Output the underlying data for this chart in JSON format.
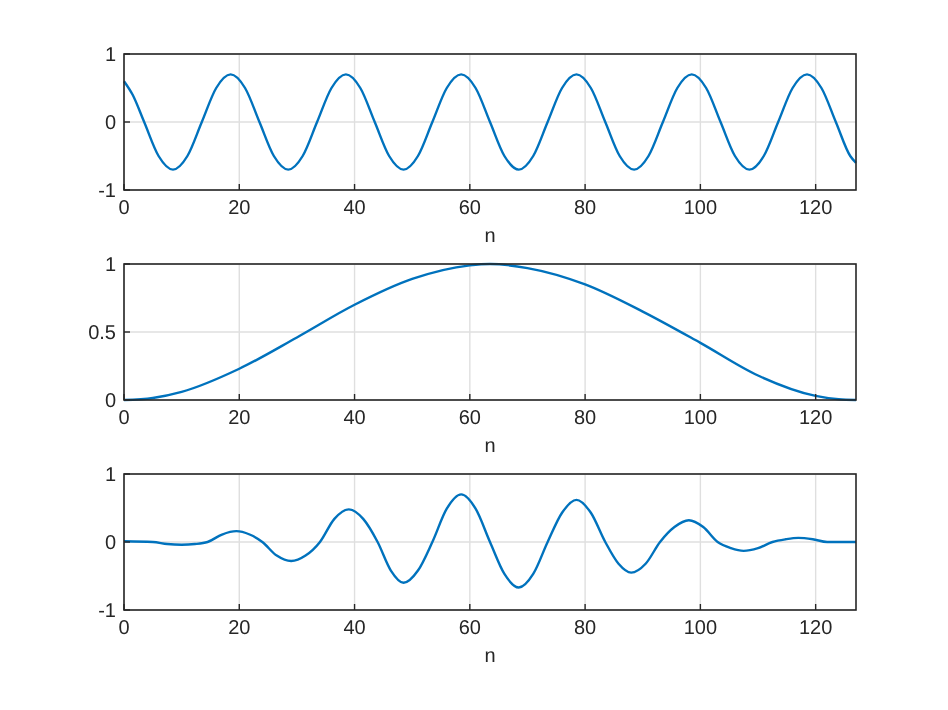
{
  "chart_data": [
    {
      "type": "line",
      "xlabel": "n",
      "xlim": [
        0,
        127
      ],
      "ylim": [
        -1,
        1
      ],
      "xticks": [
        0,
        20,
        40,
        60,
        80,
        100,
        120
      ],
      "yticks": [
        -1,
        0,
        1
      ],
      "grid": true,
      "series": [
        {
          "color": "#0072bd",
          "x": [
            0,
            1.5,
            3.5,
            6,
            8.5,
            11,
            13.5,
            16,
            18.5,
            21,
            23.5,
            26,
            28.5,
            31,
            33.5,
            36,
            38.5,
            41,
            43.5,
            46,
            48.5,
            51,
            53.5,
            56,
            58.5,
            61,
            63.5,
            66,
            68.5,
            71,
            73.5,
            76,
            78.5,
            81,
            83.5,
            86,
            88.5,
            91,
            93.5,
            96,
            98.5,
            101,
            103.5,
            106,
            108.5,
            111,
            113.5,
            116,
            118.5,
            121,
            123.5,
            126,
            127
          ],
          "values": [
            0.6,
            0.4,
            0,
            -0.5,
            -0.7,
            -0.5,
            0,
            0.5,
            0.7,
            0.5,
            0,
            -0.5,
            -0.7,
            -0.5,
            0,
            0.5,
            0.7,
            0.5,
            0,
            -0.5,
            -0.7,
            -0.5,
            0,
            0.5,
            0.7,
            0.5,
            0,
            -0.5,
            -0.7,
            -0.5,
            0,
            0.5,
            0.7,
            0.5,
            0,
            -0.5,
            -0.7,
            -0.5,
            0,
            0.5,
            0.7,
            0.5,
            0,
            -0.5,
            -0.7,
            -0.5,
            0,
            0.5,
            0.7,
            0.5,
            0,
            -0.5,
            -0.6
          ]
        }
      ]
    },
    {
      "type": "line",
      "xlabel": "n",
      "xlim": [
        0,
        127
      ],
      "ylim": [
        0,
        1
      ],
      "xticks": [
        0,
        20,
        40,
        60,
        80,
        100,
        120
      ],
      "yticks": [
        0,
        0.5,
        1
      ],
      "grid": true,
      "series": [
        {
          "color": "#0072bd",
          "x": [
            0,
            5,
            10,
            20,
            30,
            40,
            50,
            60,
            63.5,
            70,
            80,
            90,
            100,
            110,
            120,
            124,
            127
          ],
          "values": [
            0,
            0.015,
            0.06,
            0.23,
            0.46,
            0.7,
            0.89,
            0.99,
            1,
            0.97,
            0.85,
            0.65,
            0.42,
            0.18,
            0.03,
            0.005,
            0
          ]
        }
      ]
    },
    {
      "type": "line",
      "xlabel": "n",
      "xlim": [
        0,
        127
      ],
      "ylim": [
        -1,
        1
      ],
      "xticks": [
        0,
        20,
        40,
        60,
        80,
        100,
        120
      ],
      "yticks": [
        -1,
        0,
        1
      ],
      "grid": true,
      "series": [
        {
          "color": "#0072bd",
          "x": [
            0,
            5,
            7.5,
            10,
            12.3,
            14.5,
            17,
            19.5,
            21.8,
            24,
            26.5,
            29,
            31.5,
            34,
            36.5,
            39,
            41.5,
            44,
            46.3,
            48.5,
            51,
            53.5,
            56,
            58.5,
            61,
            63.5,
            66,
            68.5,
            71,
            73.5,
            76,
            78.5,
            81,
            83.5,
            85.8,
            88,
            90.5,
            93,
            95.5,
            98,
            100.5,
            103,
            105.3,
            107.5,
            110,
            112.5,
            114.8,
            117,
            119.5,
            122,
            127
          ],
          "values": [
            0.01,
            0,
            -0.03,
            -0.04,
            -0.03,
            0,
            0.11,
            0.16,
            0.11,
            0,
            -0.2,
            -0.28,
            -0.2,
            0,
            0.34,
            0.48,
            0.34,
            0,
            -0.42,
            -0.6,
            -0.42,
            0,
            0.49,
            0.7,
            0.49,
            0,
            -0.47,
            -0.67,
            -0.47,
            0,
            0.43,
            0.62,
            0.43,
            0,
            -0.32,
            -0.45,
            -0.32,
            0,
            0.22,
            0.32,
            0.22,
            0,
            -0.09,
            -0.13,
            -0.09,
            0,
            0.04,
            0.06,
            0.04,
            0,
            0
          ]
        }
      ]
    }
  ]
}
